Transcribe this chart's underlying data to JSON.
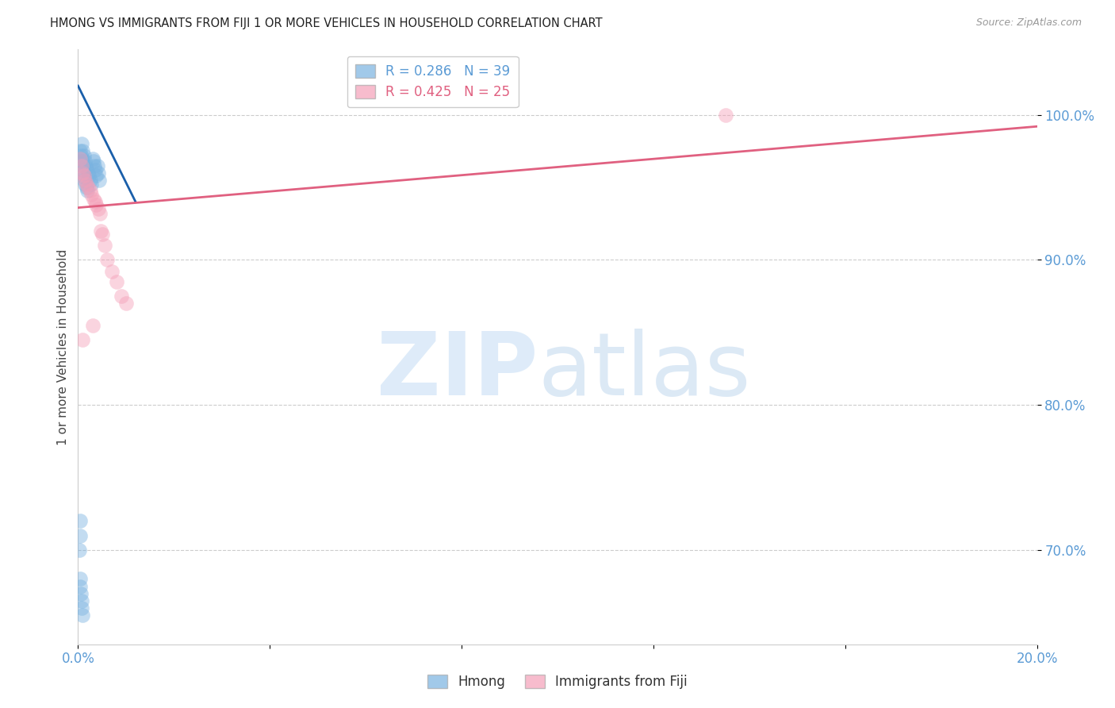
{
  "title": "HMONG VS IMMIGRANTS FROM FIJI 1 OR MORE VEHICLES IN HOUSEHOLD CORRELATION CHART",
  "source": "Source: ZipAtlas.com",
  "ylabel": "1 or more Vehicles in Household",
  "ytick_labels": [
    "100.0%",
    "90.0%",
    "80.0%",
    "70.0%"
  ],
  "ytick_values": [
    1.0,
    0.9,
    0.8,
    0.7
  ],
  "xlim": [
    0.0,
    0.2
  ],
  "ylim": [
    0.635,
    1.045
  ],
  "legend_line1": "R = 0.286   N = 39",
  "legend_line2": "R = 0.425   N = 25",
  "hmong_x": [
    0.0008,
    0.001,
    0.0012,
    0.0014,
    0.0016,
    0.0018,
    0.002,
    0.0022,
    0.0025,
    0.0028,
    0.003,
    0.0032,
    0.0034,
    0.0036,
    0.0038,
    0.004,
    0.0042,
    0.0044,
    0.0005,
    0.0006,
    0.0007,
    0.0008,
    0.0009,
    0.001,
    0.0011,
    0.0012,
    0.0013,
    0.0015,
    0.0017,
    0.0019,
    0.0003,
    0.0004,
    0.0005,
    0.0006,
    0.0007,
    0.0008,
    0.0009,
    0.0004,
    0.0005
  ],
  "hmong_y": [
    0.98,
    0.975,
    0.972,
    0.968,
    0.965,
    0.963,
    0.96,
    0.958,
    0.955,
    0.952,
    0.97,
    0.968,
    0.965,
    0.962,
    0.958,
    0.965,
    0.96,
    0.955,
    0.975,
    0.972,
    0.97,
    0.968,
    0.965,
    0.962,
    0.96,
    0.957,
    0.955,
    0.952,
    0.95,
    0.948,
    0.7,
    0.68,
    0.675,
    0.67,
    0.665,
    0.66,
    0.655,
    0.72,
    0.71
  ],
  "fiji_x": [
    0.0005,
    0.0008,
    0.001,
    0.0012,
    0.0015,
    0.0018,
    0.002,
    0.0025,
    0.0028,
    0.0032,
    0.0035,
    0.0038,
    0.0042,
    0.0045,
    0.0048,
    0.005,
    0.0055,
    0.006,
    0.007,
    0.008,
    0.009,
    0.01,
    0.003,
    0.135,
    0.001
  ],
  "fiji_y": [
    0.97,
    0.965,
    0.96,
    0.958,
    0.955,
    0.952,
    0.95,
    0.948,
    0.945,
    0.942,
    0.94,
    0.938,
    0.935,
    0.932,
    0.92,
    0.918,
    0.91,
    0.9,
    0.892,
    0.885,
    0.875,
    0.87,
    0.855,
    1.0,
    0.845
  ],
  "hmong_line_x": [
    0.0,
    0.012
  ],
  "hmong_line_y": [
    1.02,
    0.94
  ],
  "fiji_line_x": [
    0.0,
    0.2
  ],
  "fiji_line_y": [
    0.936,
    0.992
  ],
  "hmong_color": "#7ab3e0",
  "fiji_color": "#f4a0b8",
  "hmong_line_color": "#1a5faa",
  "fiji_line_color": "#e06080",
  "background_color": "#ffffff",
  "grid_color": "#cccccc"
}
